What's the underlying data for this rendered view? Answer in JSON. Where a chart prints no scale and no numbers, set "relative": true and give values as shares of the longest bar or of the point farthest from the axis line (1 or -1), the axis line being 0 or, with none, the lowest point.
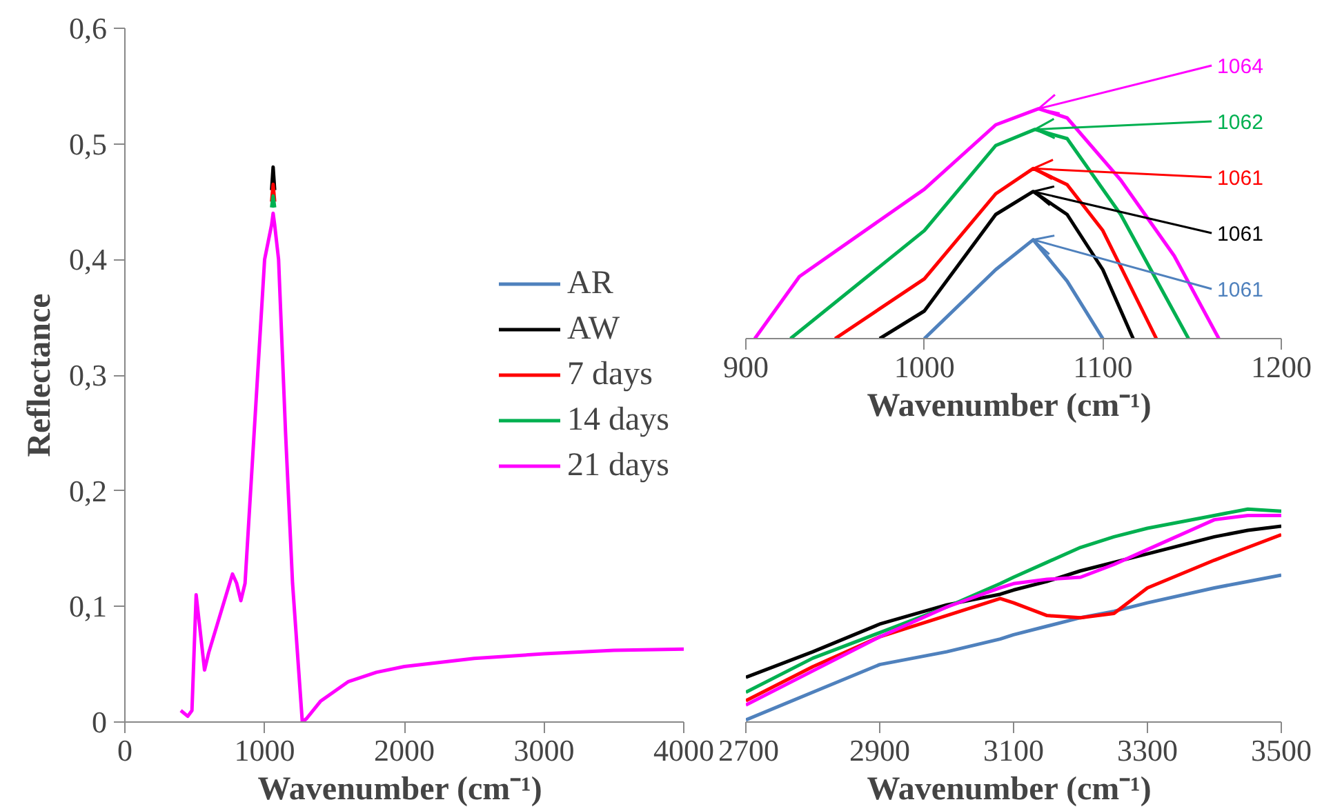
{
  "chart_data": [
    {
      "type": "line",
      "xlabel": "Wavenumber  (cm⁻¹)",
      "ylabel": "Reflectance",
      "xlim": [
        0,
        4000
      ],
      "xticks": [
        0,
        1000,
        2000,
        3000,
        4000
      ],
      "ylim": [
        0,
        0.6
      ],
      "yticks": [
        0,
        {
          "value": 0.1,
          "label": "0,1"
        },
        {
          "value": 0.2,
          "label": "0,2"
        },
        {
          "value": 0.3,
          "label": "0,3"
        },
        {
          "value": 0.4,
          "label": "0,4"
        },
        {
          "value": 0.5,
          "label": "0,5"
        },
        {
          "value": 0.6,
          "label": "0,6"
        }
      ],
      "grid": false,
      "legend": "right",
      "x": [
        400,
        450,
        480,
        510,
        570,
        600,
        700,
        770,
        800,
        830,
        860,
        950,
        1000,
        1050,
        1061,
        1072,
        1100,
        1150,
        1200,
        1270,
        1300,
        1400,
        1600,
        1800,
        2000,
        2500,
        3000,
        3500,
        4000
      ],
      "series": [
        {
          "name": "AR",
          "color": "#4f81bd",
          "values": [
            null,
            null,
            null,
            null,
            null,
            null,
            null,
            null,
            null,
            null,
            null,
            null,
            null,
            null,
            null,
            null,
            null,
            null,
            null,
            null,
            null,
            null,
            null,
            null,
            null,
            null,
            null,
            null,
            null
          ]
        },
        {
          "name": "AW",
          "color": "#000000",
          "values": [
            null,
            null,
            null,
            null,
            null,
            null,
            null,
            null,
            null,
            null,
            null,
            null,
            null,
            0.46,
            0.48,
            0.46,
            null,
            null,
            null,
            null,
            null,
            null,
            null,
            null,
            null,
            null,
            null,
            null,
            null
          ]
        },
        {
          "name": "7 days",
          "color": "#ff0000",
          "values": [
            null,
            null,
            null,
            null,
            null,
            null,
            null,
            null,
            null,
            null,
            null,
            null,
            null,
            0.45,
            0.465,
            0.45,
            null,
            null,
            null,
            null,
            null,
            null,
            null,
            null,
            null,
            null,
            null,
            null,
            null
          ]
        },
        {
          "name": "14 days",
          "color": "#00b050",
          "values": [
            null,
            null,
            null,
            null,
            null,
            null,
            null,
            null,
            null,
            null,
            null,
            null,
            null,
            0.445,
            0.455,
            0.445,
            null,
            null,
            null,
            null,
            null,
            null,
            null,
            null,
            null,
            null,
            null,
            null,
            null
          ]
        },
        {
          "name": "21 days",
          "color": "#ff00ff",
          "values": [
            0.01,
            0.005,
            0.01,
            0.11,
            0.045,
            0.06,
            0.1,
            0.128,
            0.12,
            0.105,
            0.12,
            0.3,
            0.4,
            0.43,
            0.44,
            0.43,
            0.4,
            0.25,
            0.12,
            0.0,
            0.003,
            0.018,
            0.035,
            0.043,
            0.048,
            0.055,
            0.059,
            0.062,
            0.063
          ]
        }
      ]
    },
    {
      "type": "line",
      "relative": true,
      "xlabel": "Wavenumber  (cm⁻¹)",
      "xlim": [
        900,
        1200
      ],
      "xticks": [
        900,
        1000,
        1100,
        1200
      ],
      "tick_labels": "x",
      "grid": false,
      "series": [
        {
          "color": "#4f81bd",
          "x": [
            1000,
            1040,
            1061,
            1080,
            1100
          ],
          "values": [
            0,
            0.3,
            0.43,
            0.25,
            0
          ]
        },
        {
          "color": "#000000",
          "x": [
            975,
            1000,
            1040,
            1061,
            1080,
            1100,
            1117
          ],
          "values": [
            0,
            0.12,
            0.54,
            0.64,
            0.54,
            0.3,
            0
          ]
        },
        {
          "color": "#ff0000",
          "x": [
            950,
            1000,
            1040,
            1061,
            1080,
            1100,
            1130
          ],
          "values": [
            0,
            0.26,
            0.63,
            0.74,
            0.67,
            0.47,
            0
          ]
        },
        {
          "color": "#00b050",
          "x": [
            925,
            1000,
            1040,
            1062,
            1080,
            1110,
            1148
          ],
          "values": [
            0,
            0.47,
            0.84,
            0.91,
            0.87,
            0.54,
            0
          ]
        },
        {
          "color": "#ff00ff",
          "x": [
            905,
            930,
            1000,
            1040,
            1064,
            1080,
            1110,
            1140,
            1165
          ],
          "values": [
            0,
            0.27,
            0.65,
            0.93,
            1,
            0.96,
            0.69,
            0.36,
            0
          ]
        }
      ],
      "annotations": [
        {
          "text": "1064",
          "x": 1064,
          "y": 1
        },
        {
          "text": "1062",
          "x": 1062,
          "y": 0.91
        },
        {
          "text": "1061",
          "x": 1061,
          "y": 0.74
        },
        {
          "text": "1061",
          "x": 1061,
          "y": 0.64
        },
        {
          "text": "1061",
          "x": 1061,
          "y": 0.43
        }
      ]
    },
    {
      "type": "line",
      "relative": true,
      "xlabel": "Wavenumber  (cm⁻¹)",
      "xlim": [
        2700,
        3500
      ],
      "xticks": [
        2700,
        2900,
        3100,
        3300,
        3500
      ],
      "tick_labels": "x",
      "grid": false,
      "x": [
        2700,
        2800,
        2900,
        3000,
        3080,
        3100,
        3150,
        3200,
        3250,
        3300,
        3400,
        3450,
        3500
      ],
      "series": [
        {
          "color": "#4f81bd",
          "values": [
            0.01,
            0.14,
            0.27,
            0.33,
            0.39,
            0.41,
            0.45,
            0.49,
            0.52,
            0.56,
            0.63,
            0.66,
            0.69
          ]
        },
        {
          "color": "#000000",
          "values": [
            0.21,
            0.33,
            0.46,
            0.55,
            0.6,
            0.62,
            0.66,
            0.71,
            0.75,
            0.79,
            0.87,
            0.9,
            0.92
          ]
        },
        {
          "color": "#ff0000",
          "values": [
            0.1,
            0.26,
            0.4,
            0.5,
            0.58,
            0.56,
            0.5,
            0.49,
            0.51,
            0.63,
            0.76,
            0.82,
            0.88
          ]
        },
        {
          "color": "#00b050",
          "values": [
            0.14,
            0.3,
            0.42,
            0.54,
            0.65,
            0.68,
            0.75,
            0.82,
            0.87,
            0.91,
            0.97,
            1,
            0.99
          ]
        },
        {
          "color": "#ff00ff",
          "values": [
            0.08,
            0.24,
            0.4,
            0.54,
            0.63,
            0.65,
            0.67,
            0.68,
            0.74,
            0.81,
            0.95,
            0.97,
            0.97
          ]
        }
      ]
    }
  ]
}
